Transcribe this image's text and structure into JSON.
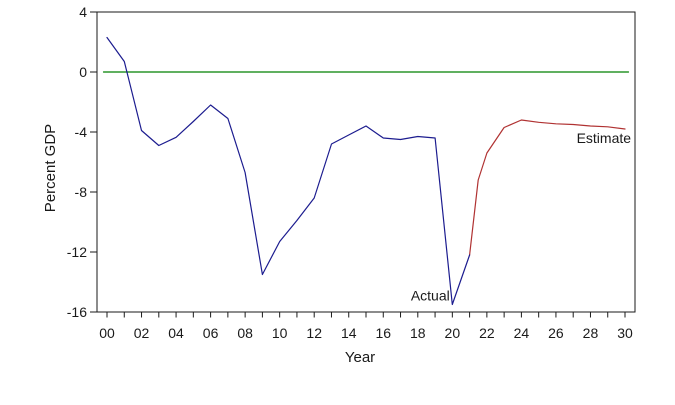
{
  "chart_data": {
    "type": "line",
    "title": "",
    "xlabel": "Year",
    "ylabel": "Percent GDP",
    "xlim": [
      0,
      30
    ],
    "ylim": [
      -16,
      4
    ],
    "grid": false,
    "frame": true,
    "legend": "none (inline annotations)",
    "x_tick_labels": [
      "00",
      "02",
      "04",
      "06",
      "08",
      "10",
      "12",
      "14",
      "16",
      "18",
      "20",
      "22",
      "24",
      "26",
      "28",
      "30"
    ],
    "x_minor_tick_every": 1,
    "y_ticks": [
      4,
      0,
      -4,
      -8,
      -12,
      -16
    ],
    "series": [
      {
        "name": "Actual",
        "color": "#1c1c8f",
        "x": [
          0,
          1,
          2,
          3,
          4,
          5,
          6,
          7,
          8,
          9,
          10,
          11,
          12,
          13,
          14,
          15,
          16,
          17,
          18,
          19,
          20,
          21
        ],
        "y": [
          2.3,
          0.7,
          -3.9,
          -4.9,
          -4.35,
          -3.3,
          -2.2,
          -3.1,
          -6.7,
          -13.5,
          -11.3,
          -9.9,
          -8.4,
          -4.8,
          -4.2,
          -3.6,
          -4.4,
          -4.5,
          -4.3,
          -4.4,
          -15.5,
          -12.2
        ]
      },
      {
        "name": "Estimate",
        "color": "#b03232",
        "x": [
          21,
          21.5,
          22,
          23,
          24,
          25,
          26,
          27,
          28,
          29,
          30
        ],
        "y": [
          -12.2,
          -7.2,
          -5.4,
          -3.7,
          -3.2,
          -3.35,
          -3.45,
          -3.5,
          -3.6,
          -3.65,
          -3.8
        ]
      },
      {
        "name": "Zero reference line",
        "color": "#008000",
        "x": [
          -0.2,
          30.2
        ],
        "y": [
          0,
          0
        ]
      }
    ],
    "annotations": [
      {
        "text": "Actual",
        "x": 19.85,
        "y": -14.9,
        "align": "end"
      },
      {
        "text": "Estimate",
        "x": 30.35,
        "y": -4.4,
        "align": "end"
      }
    ]
  }
}
